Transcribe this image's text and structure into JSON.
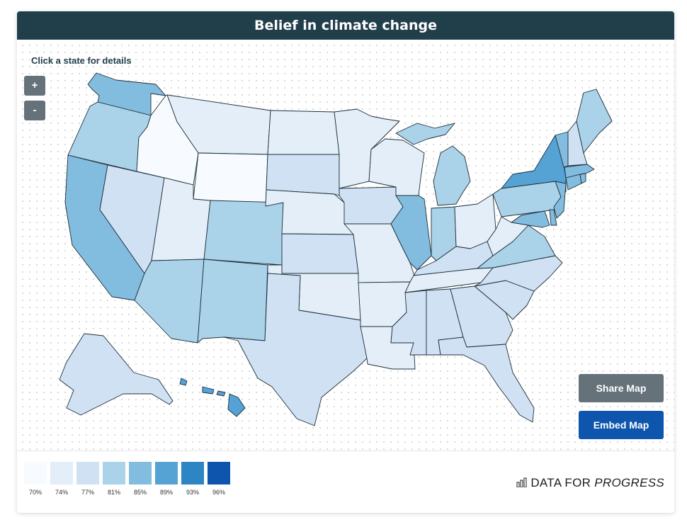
{
  "title": "Belief in climate change",
  "hint": "Click a state for details",
  "zoom": {
    "in_label": "+",
    "out_label": "-"
  },
  "buttons": {
    "share": "Share Map",
    "embed": "Embed Map"
  },
  "brand": {
    "prefix": "DATA FOR ",
    "emphasis": "PROGRESS",
    "icon": "bar-chart-icon"
  },
  "legend": {
    "colors": [
      "#f7fbff",
      "#e3eef8",
      "#cfe1f2",
      "#aad2e8",
      "#82bcdf",
      "#55a3d4",
      "#2e85c3",
      "#0e56ad"
    ],
    "labels": [
      "70%",
      "74%",
      "77%",
      "81%",
      "85%",
      "89%",
      "93%",
      "96%"
    ]
  },
  "states": [
    {
      "name": "Washington",
      "level": 4
    },
    {
      "name": "Oregon",
      "level": 3
    },
    {
      "name": "California",
      "level": 4
    },
    {
      "name": "Nevada",
      "level": 2
    },
    {
      "name": "Idaho",
      "level": 0
    },
    {
      "name": "Montana",
      "level": 1
    },
    {
      "name": "Wyoming",
      "level": 0
    },
    {
      "name": "Utah",
      "level": 1
    },
    {
      "name": "Arizona",
      "level": 3
    },
    {
      "name": "Colorado",
      "level": 3
    },
    {
      "name": "New Mexico",
      "level": 3
    },
    {
      "name": "North Dakota",
      "level": 1
    },
    {
      "name": "South Dakota",
      "level": 2
    },
    {
      "name": "Nebraska",
      "level": 1
    },
    {
      "name": "Kansas",
      "level": 2
    },
    {
      "name": "Oklahoma",
      "level": 1
    },
    {
      "name": "Texas",
      "level": 2
    },
    {
      "name": "Minnesota",
      "level": 1
    },
    {
      "name": "Iowa",
      "level": 2
    },
    {
      "name": "Missouri",
      "level": 1
    },
    {
      "name": "Arkansas",
      "level": 1
    },
    {
      "name": "Louisiana",
      "level": 1
    },
    {
      "name": "Wisconsin",
      "level": 1
    },
    {
      "name": "Illinois",
      "level": 4
    },
    {
      "name": "Michigan",
      "level": 3
    },
    {
      "name": "Indiana",
      "level": 3
    },
    {
      "name": "Ohio",
      "level": 1
    },
    {
      "name": "Kentucky",
      "level": 2
    },
    {
      "name": "Tennessee",
      "level": 1
    },
    {
      "name": "Mississippi",
      "level": 2
    },
    {
      "name": "Alabama",
      "level": 2
    },
    {
      "name": "Georgia",
      "level": 2
    },
    {
      "name": "Florida",
      "level": 2
    },
    {
      "name": "South Carolina",
      "level": 2
    },
    {
      "name": "North Carolina",
      "level": 2
    },
    {
      "name": "Virginia",
      "level": 3
    },
    {
      "name": "West Virginia",
      "level": 1
    },
    {
      "name": "Pennsylvania",
      "level": 3
    },
    {
      "name": "New York",
      "level": 5
    },
    {
      "name": "Maryland",
      "level": 4
    },
    {
      "name": "Delaware",
      "level": 4
    },
    {
      "name": "New Jersey",
      "level": 4
    },
    {
      "name": "Connecticut",
      "level": 4
    },
    {
      "name": "Rhode Island",
      "level": 4
    },
    {
      "name": "Massachusetts",
      "level": 4
    },
    {
      "name": "Vermont",
      "level": 4
    },
    {
      "name": "New Hampshire",
      "level": 2
    },
    {
      "name": "Maine",
      "level": 3
    },
    {
      "name": "Alaska",
      "level": 2
    },
    {
      "name": "Hawaii",
      "level": 5
    }
  ]
}
